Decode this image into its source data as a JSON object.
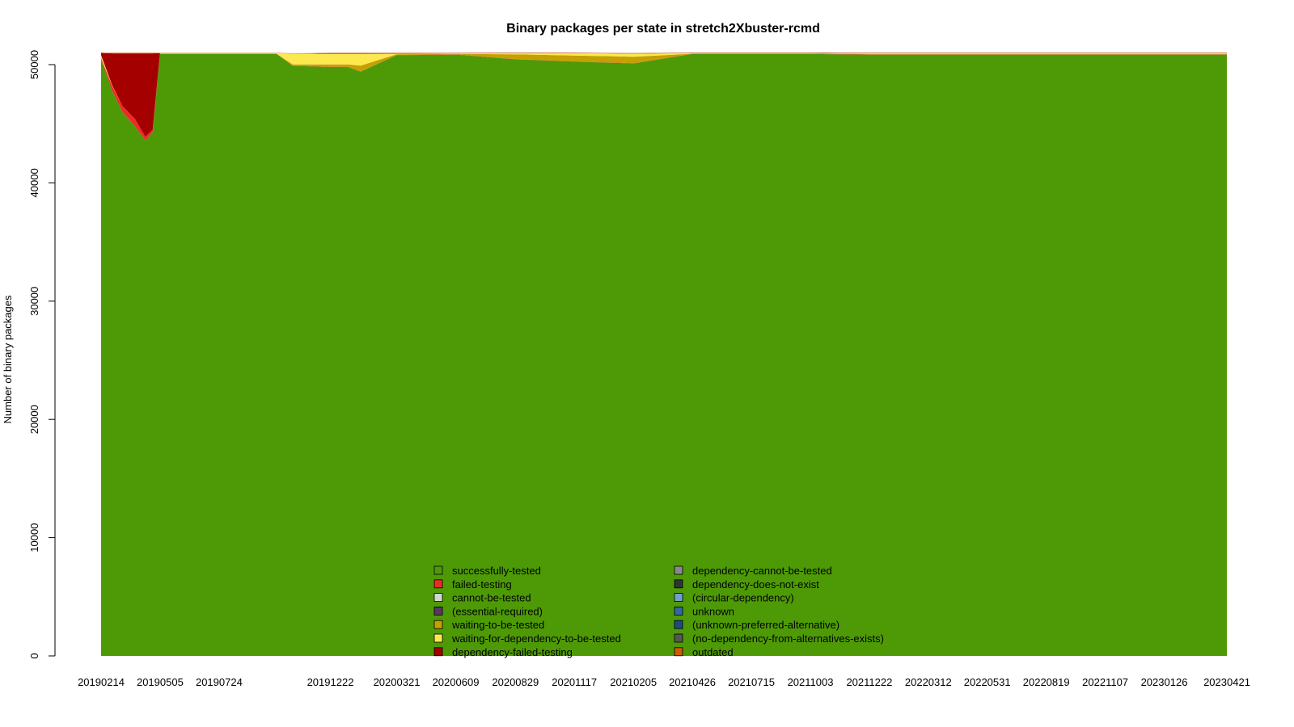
{
  "chart_data": {
    "type": "area",
    "stacked": true,
    "title": "Binary packages per state in stretch2Xbuster-rcmd",
    "xlabel": "",
    "ylabel": "Number of binary packages",
    "ylim": [
      0,
      50000
    ],
    "y_ticks": [
      "0",
      "10000",
      "20000",
      "30000",
      "40000",
      "50000"
    ],
    "x_ticks": [
      "20190214",
      "20190505",
      "20190724",
      "20191222",
      "20200321",
      "20200609",
      "20200829",
      "20201117",
      "20210205",
      "20210426",
      "20210715",
      "20211003",
      "20211222",
      "20220312",
      "20220531",
      "20220819",
      "20221107",
      "20230126",
      "20230421"
    ],
    "x": [
      "20190214",
      "20190301",
      "20190315",
      "20190401",
      "20190415",
      "20190425",
      "20190505",
      "20190724",
      "20191001",
      "20191010",
      "20191101",
      "20191222",
      "20200115",
      "20200201",
      "20200321",
      "20200609",
      "20200829",
      "20201117",
      "20210205",
      "20210426",
      "20210715",
      "20211003",
      "20211222",
      "20220312",
      "20220531",
      "20220819",
      "20221107",
      "20230126",
      "20230421"
    ],
    "series": [
      {
        "name": "successfully-tested",
        "color": "#4e9a06",
        "values": [
          50400,
          47800,
          46000,
          44800,
          43600,
          44300,
          50900,
          50900,
          50900,
          50900,
          49900,
          49800,
          49800,
          49400,
          50800,
          50850,
          50450,
          50250,
          50100,
          50900,
          50900,
          50900,
          50850,
          50850,
          50850,
          50850,
          50850,
          50850,
          50850
        ]
      },
      {
        "name": "failed-testing",
        "color": "#ef2929",
        "values": [
          100,
          400,
          500,
          600,
          300,
          200,
          20,
          20,
          20,
          20,
          20,
          20,
          20,
          20,
          20,
          20,
          20,
          20,
          20,
          20,
          20,
          20,
          20,
          20,
          20,
          20,
          20,
          20,
          20
        ]
      },
      {
        "name": "cannot-be-tested",
        "color": "#d3d7cf",
        "values": [
          0,
          0,
          0,
          0,
          0,
          0,
          0,
          0,
          0,
          0,
          0,
          0,
          0,
          0,
          0,
          0,
          0,
          0,
          0,
          0,
          0,
          0,
          0,
          0,
          0,
          0,
          0,
          0,
          0
        ]
      },
      {
        "name": "(essential-required)",
        "color": "#5c3566",
        "values": [
          0,
          0,
          0,
          0,
          0,
          0,
          0,
          0,
          0,
          0,
          0,
          0,
          0,
          0,
          0,
          0,
          0,
          0,
          0,
          0,
          0,
          0,
          0,
          0,
          0,
          0,
          0,
          0,
          0
        ]
      },
      {
        "name": "waiting-to-be-tested",
        "color": "#c4a000",
        "values": [
          100,
          0,
          0,
          0,
          0,
          0,
          0,
          0,
          0,
          0,
          100,
          200,
          200,
          500,
          60,
          30,
          400,
          500,
          550,
          0,
          0,
          0,
          40,
          40,
          40,
          40,
          40,
          40,
          40
        ]
      },
      {
        "name": "waiting-for-dependency-to-be-tested",
        "color": "#fce94f",
        "values": [
          200,
          50,
          0,
          0,
          0,
          0,
          50,
          50,
          50,
          50,
          900,
          900,
          900,
          1000,
          50,
          50,
          100,
          200,
          250,
          50,
          50,
          50,
          50,
          50,
          50,
          50,
          50,
          50,
          50
        ]
      },
      {
        "name": "dependency-failed-testing",
        "color": "#a40000",
        "values": [
          200,
          2700,
          4450,
          5550,
          7050,
          6450,
          0,
          0,
          0,
          0,
          0,
          50,
          50,
          50,
          40,
          20,
          20,
          20,
          20,
          20,
          20,
          20,
          20,
          20,
          20,
          20,
          20,
          20,
          20
        ]
      },
      {
        "name": "dependency-cannot-be-tested",
        "color": "#888a85",
        "values": [
          0,
          0,
          0,
          0,
          0,
          0,
          0,
          0,
          0,
          0,
          0,
          0,
          0,
          0,
          0,
          0,
          0,
          0,
          0,
          0,
          0,
          0,
          0,
          0,
          0,
          0,
          0,
          0,
          0
        ]
      },
      {
        "name": "dependency-does-not-exist",
        "color": "#2e3436",
        "values": [
          0,
          0,
          0,
          0,
          0,
          0,
          0,
          0,
          0,
          0,
          0,
          0,
          0,
          0,
          0,
          0,
          0,
          0,
          0,
          0,
          0,
          0,
          0,
          0,
          0,
          0,
          0,
          0,
          0
        ]
      },
      {
        "name": "(circular-dependency)",
        "color": "#729fcf",
        "values": [
          0,
          0,
          0,
          0,
          0,
          0,
          0,
          0,
          0,
          0,
          0,
          0,
          0,
          0,
          0,
          0,
          0,
          0,
          0,
          0,
          0,
          0,
          0,
          0,
          0,
          0,
          0,
          0,
          0
        ]
      },
      {
        "name": "unknown",
        "color": "#3465a4",
        "values": [
          0,
          0,
          0,
          0,
          0,
          0,
          0,
          0,
          0,
          0,
          0,
          0,
          0,
          0,
          0,
          0,
          0,
          0,
          0,
          0,
          0,
          0,
          0,
          0,
          0,
          0,
          0,
          0,
          0
        ]
      },
      {
        "name": "(unknown-preferred-alternative)",
        "color": "#204a87",
        "values": [
          0,
          0,
          0,
          0,
          0,
          0,
          0,
          0,
          0,
          0,
          0,
          0,
          0,
          0,
          0,
          0,
          0,
          0,
          0,
          0,
          0,
          0,
          0,
          0,
          0,
          0,
          0,
          0,
          0
        ]
      },
      {
        "name": "(no-dependency-from-alternatives-exists)",
        "color": "#555753",
        "values": [
          0,
          0,
          0,
          0,
          0,
          0,
          0,
          0,
          0,
          0,
          0,
          0,
          0,
          0,
          0,
          0,
          0,
          0,
          0,
          0,
          0,
          0,
          0,
          0,
          0,
          0,
          0,
          0,
          0
        ]
      },
      {
        "name": "outdated",
        "color": "#ce5c00",
        "values": [
          0,
          50,
          50,
          50,
          50,
          50,
          30,
          30,
          30,
          30,
          30,
          30,
          30,
          30,
          30,
          30,
          30,
          30,
          30,
          30,
          30,
          30,
          40,
          40,
          40,
          40,
          40,
          40,
          40
        ]
      }
    ],
    "legend_placement": "bottom-center",
    "legend_columns": 2,
    "grid": false
  }
}
